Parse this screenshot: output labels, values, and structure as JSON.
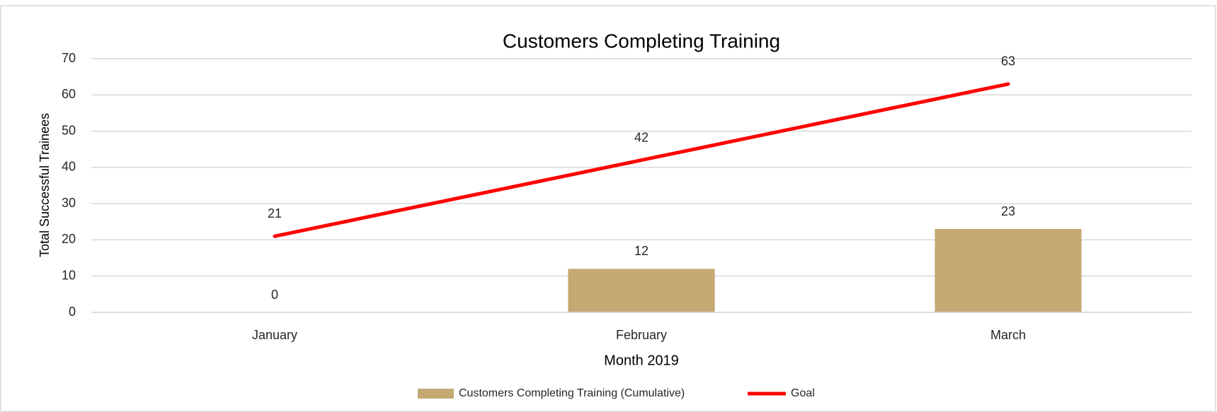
{
  "chart_data": {
    "type": "combo",
    "title": "Customers Completing Training",
    "x_label": "Month 2019",
    "y_label": "Total Successful Trainees",
    "categories": [
      "January",
      "February",
      "March"
    ],
    "series": [
      {
        "name": "Customers Completing Training (Cumulative)",
        "type": "bar",
        "color": "#c4a973",
        "values": [
          0,
          12,
          23
        ]
      },
      {
        "name": "Goal",
        "type": "line",
        "color": "#ff0000",
        "values": [
          21,
          42,
          63
        ]
      }
    ],
    "ylim": [
      0,
      70
    ],
    "yticks": [
      0,
      10,
      20,
      30,
      40,
      50,
      60,
      70
    ],
    "grid": true,
    "legend": "bottom"
  }
}
